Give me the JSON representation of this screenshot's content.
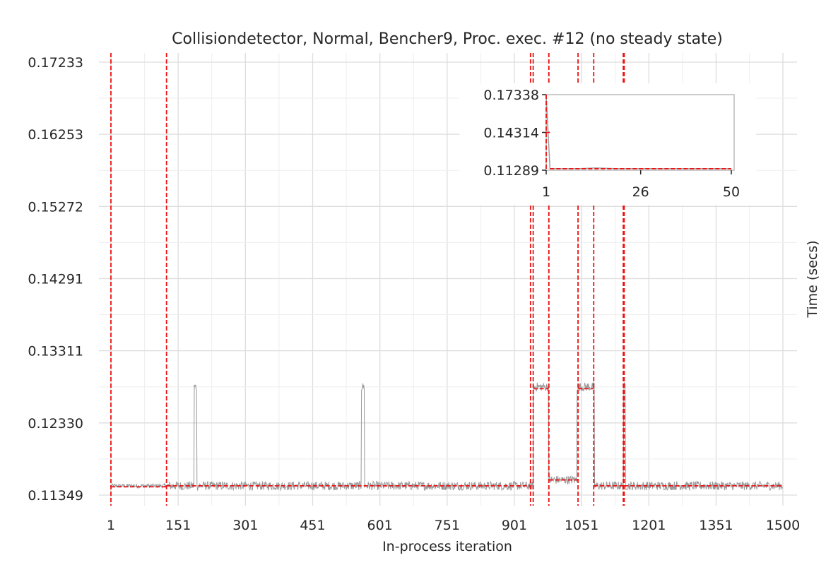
{
  "chart_data": [
    {
      "type": "line",
      "title": "Collisiondetector, Normal, Bencher9, Proc. exec. #12 (no steady state)",
      "xlabel": "In-process iteration",
      "ylabel": "Time (secs)",
      "ylabel_position": "right",
      "grid": true,
      "xlim": [
        1,
        1500
      ],
      "ylim": [
        0.11349,
        0.17233
      ],
      "x_ticks": [
        "1",
        "151",
        "301",
        "451",
        "601",
        "751",
        "901",
        "1051",
        "1201",
        "1351",
        "1500"
      ],
      "x_tick_values": [
        1,
        151,
        301,
        451,
        601,
        751,
        901,
        1051,
        1201,
        1351,
        1500
      ],
      "y_ticks": [
        "0.11349",
        "0.12330",
        "0.13311",
        "0.14291",
        "0.15272",
        "0.16253",
        "0.17233"
      ],
      "y_tick_values": [
        0.11349,
        0.1233,
        0.13311,
        0.14291,
        0.15272,
        0.16253,
        0.17233
      ],
      "series": [
        {
          "role": "timing",
          "color": "#999999",
          "baseline": 0.11475,
          "noise": 0.0006,
          "spikes": [
            {
              "x_start": 187,
              "x_end": 192,
              "value": 0.1282
            },
            {
              "x_start": 560,
              "x_end": 566,
              "value": 0.1282
            },
            {
              "x_start": 944,
              "x_end": 978,
              "value": 0.1282
            },
            {
              "x_start": 978,
              "x_end": 1043,
              "value": 0.11555
            },
            {
              "x_start": 1041,
              "x_end": 1043,
              "value": 0.1282
            },
            {
              "x_start": 1043,
              "x_end": 1079,
              "value": 0.1282
            },
            {
              "x_start": 1145,
              "x_end": 1148,
              "value": 0.1282
            }
          ]
        }
      ],
      "changepoints": [
        1,
        125,
        937,
        943,
        978,
        1043,
        1078,
        1144,
        1146
      ],
      "segment_means": [
        {
          "x_start": 1,
          "x_end": 125,
          "value": 0.11462
        },
        {
          "x_start": 125,
          "x_end": 937,
          "value": 0.11475
        },
        {
          "x_start": 943,
          "x_end": 978,
          "value": 0.12795
        },
        {
          "x_start": 978,
          "x_end": 1043,
          "value": 0.11555
        },
        {
          "x_start": 1043,
          "x_end": 1078,
          "value": 0.12795
        },
        {
          "x_start": 1078,
          "x_end": 1144,
          "value": 0.11475
        },
        {
          "x_start": 1146,
          "x_end": 1500,
          "value": 0.11475
        }
      ],
      "colors": {
        "timing": "#999999",
        "changepoint": "#ee1111",
        "grid": "#dddddd",
        "text": "#262626"
      }
    },
    {
      "type": "line",
      "role": "inset",
      "xlim": [
        1,
        50
      ],
      "ylim": [
        0.11289,
        0.17338
      ],
      "x_ticks": [
        "1",
        "26",
        "50"
      ],
      "x_tick_values": [
        1,
        26,
        50
      ],
      "y_ticks": [
        "0.11289",
        "0.14314",
        "0.17338"
      ],
      "y_tick_values": [
        0.11289,
        0.14314,
        0.17338
      ],
      "series": [
        {
          "color": "#999999",
          "x": [
            1,
            2,
            3,
            5,
            10,
            14,
            20,
            26,
            35,
            50
          ],
          "values": [
            0.17338,
            0.1142,
            0.1141,
            0.1141,
            0.1142,
            0.1147,
            0.1141,
            0.1141,
            0.1141,
            0.1141
          ]
        }
      ],
      "changepoints": [
        1
      ],
      "segment_means": [
        {
          "x_start": 1,
          "x_end": 2,
          "value": 0.14314
        },
        {
          "x_start": 2,
          "x_end": 50,
          "value": 0.1141
        }
      ]
    }
  ]
}
